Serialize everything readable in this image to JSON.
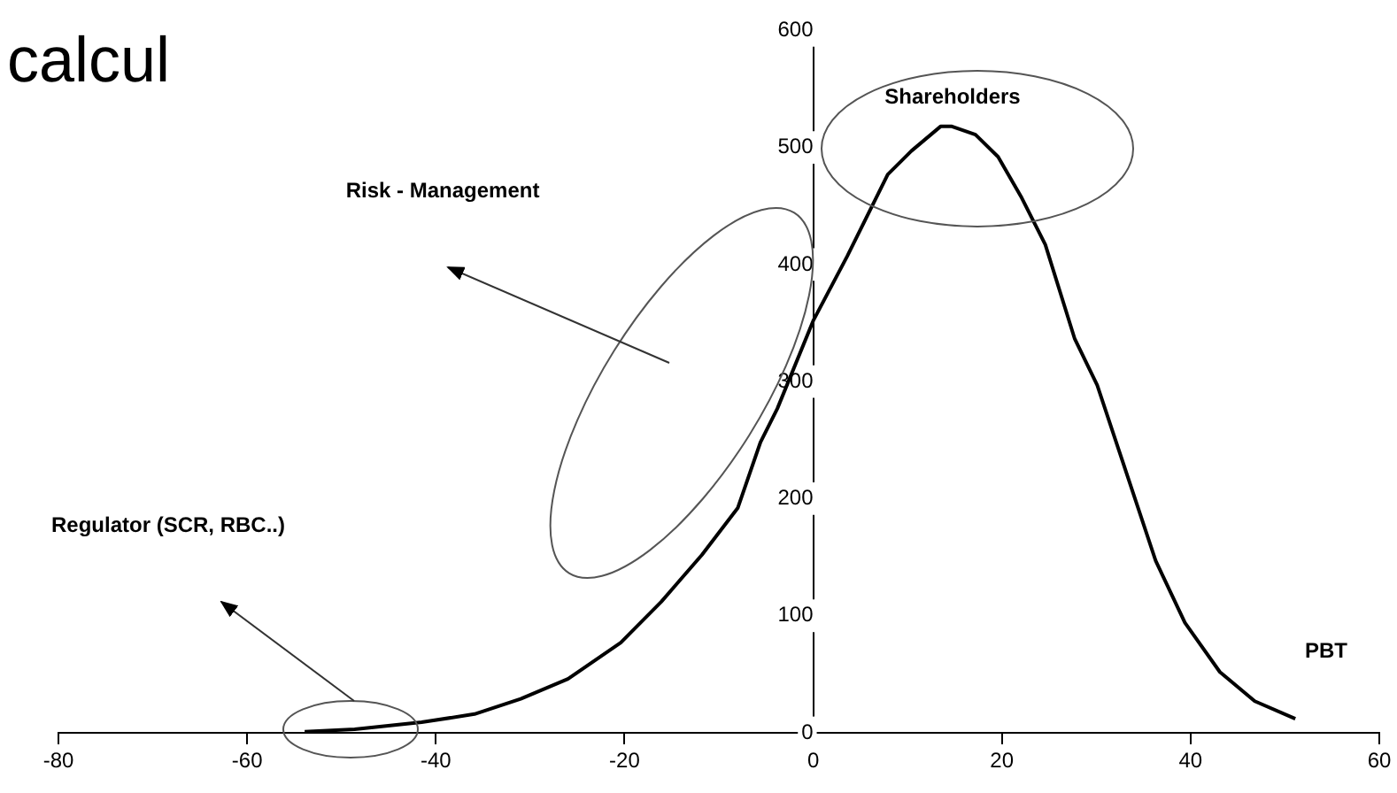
{
  "chart_data": {
    "type": "line",
    "title": "calcul",
    "xlabel": "PBT",
    "xlim": [
      -80,
      60
    ],
    "xticks": [
      -80,
      -60,
      -40,
      -20,
      0,
      20,
      40,
      60
    ],
    "ylim": [
      0,
      600
    ],
    "yticks": [
      0,
      100,
      200,
      300,
      400,
      500,
      600
    ],
    "grid": false,
    "legend": false,
    "marker": "none",
    "line_style": "solid",
    "series": [
      {
        "color": "#000000",
        "x": [
          -53.9,
          -48.6,
          -41.5,
          -35.9,
          -31,
          -26,
          -20.4,
          -16.1,
          -11.8,
          -8,
          -5.6,
          -3.8,
          0,
          3.6,
          7.9,
          10.4,
          13.5,
          14.7,
          17.2,
          19.6,
          22.1,
          24.6,
          27.7,
          30.1,
          33.2,
          36.3,
          39.4,
          43.1,
          46.8,
          51.1
        ],
        "values": [
          1,
          3,
          9,
          16,
          29,
          46,
          77,
          112,
          152,
          192,
          248,
          277,
          352,
          407,
          477,
          497,
          518,
          518,
          511,
          492,
          457,
          417,
          337,
          297,
          222,
          147,
          94,
          52,
          27,
          12
        ]
      }
    ],
    "annotations": [
      "Shareholders",
      "Risk - Management",
      "Regulator (SCR, RBC..)"
    ]
  }
}
